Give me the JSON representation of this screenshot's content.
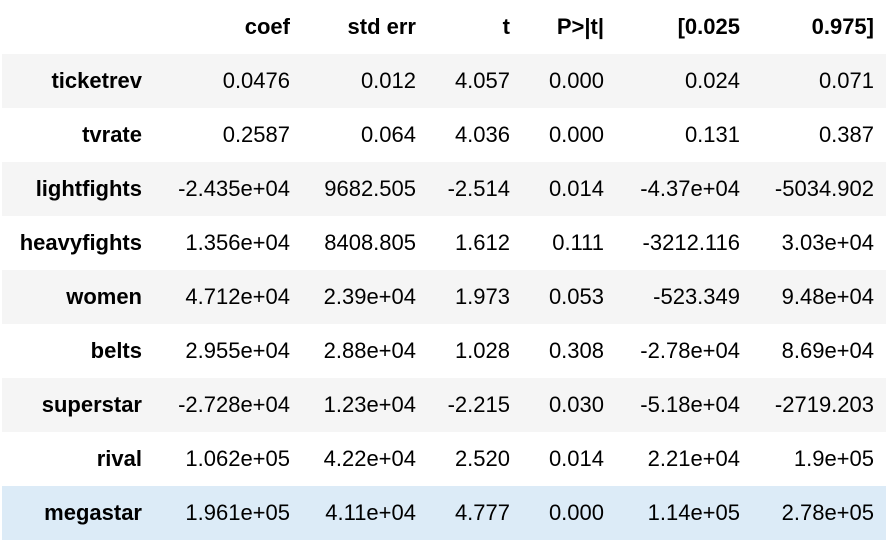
{
  "table": {
    "columns": [
      "",
      "coef",
      "std err",
      "t",
      "P>|t|",
      "[0.025",
      "0.975]"
    ],
    "rows": [
      {
        "label": "ticketrev",
        "values": [
          "0.0476",
          "0.012",
          "4.057",
          "0.000",
          "0.024",
          "0.071"
        ]
      },
      {
        "label": "tvrate",
        "values": [
          "0.2587",
          "0.064",
          "4.036",
          "0.000",
          "0.131",
          "0.387"
        ]
      },
      {
        "label": "lightfights",
        "values": [
          "-2.435e+04",
          "9682.505",
          "-2.514",
          "0.014",
          "-4.37e+04",
          "-5034.902"
        ]
      },
      {
        "label": "heavyfights",
        "values": [
          "1.356e+04",
          "8408.805",
          "1.612",
          "0.111",
          "-3212.116",
          "3.03e+04"
        ]
      },
      {
        "label": "women",
        "values": [
          "4.712e+04",
          "2.39e+04",
          "1.973",
          "0.053",
          "-523.349",
          "9.48e+04"
        ]
      },
      {
        "label": "belts",
        "values": [
          "2.955e+04",
          "2.88e+04",
          "1.028",
          "0.308",
          "-2.78e+04",
          "8.69e+04"
        ]
      },
      {
        "label": "superstar",
        "values": [
          "-2.728e+04",
          "1.23e+04",
          "-2.215",
          "0.030",
          "-5.18e+04",
          "-2719.203"
        ]
      },
      {
        "label": "rival",
        "values": [
          "1.062e+05",
          "4.22e+04",
          "2.520",
          "0.014",
          "2.21e+04",
          "1.9e+05"
        ]
      },
      {
        "label": "megastar",
        "values": [
          "1.961e+05",
          "4.11e+04",
          "4.777",
          "0.000",
          "1.14e+05",
          "2.78e+05"
        ]
      }
    ],
    "hovered_row": "megastar",
    "colors": {
      "stripe": "#f5f5f5",
      "hover": "#dcebf7",
      "text": "#000000"
    }
  }
}
